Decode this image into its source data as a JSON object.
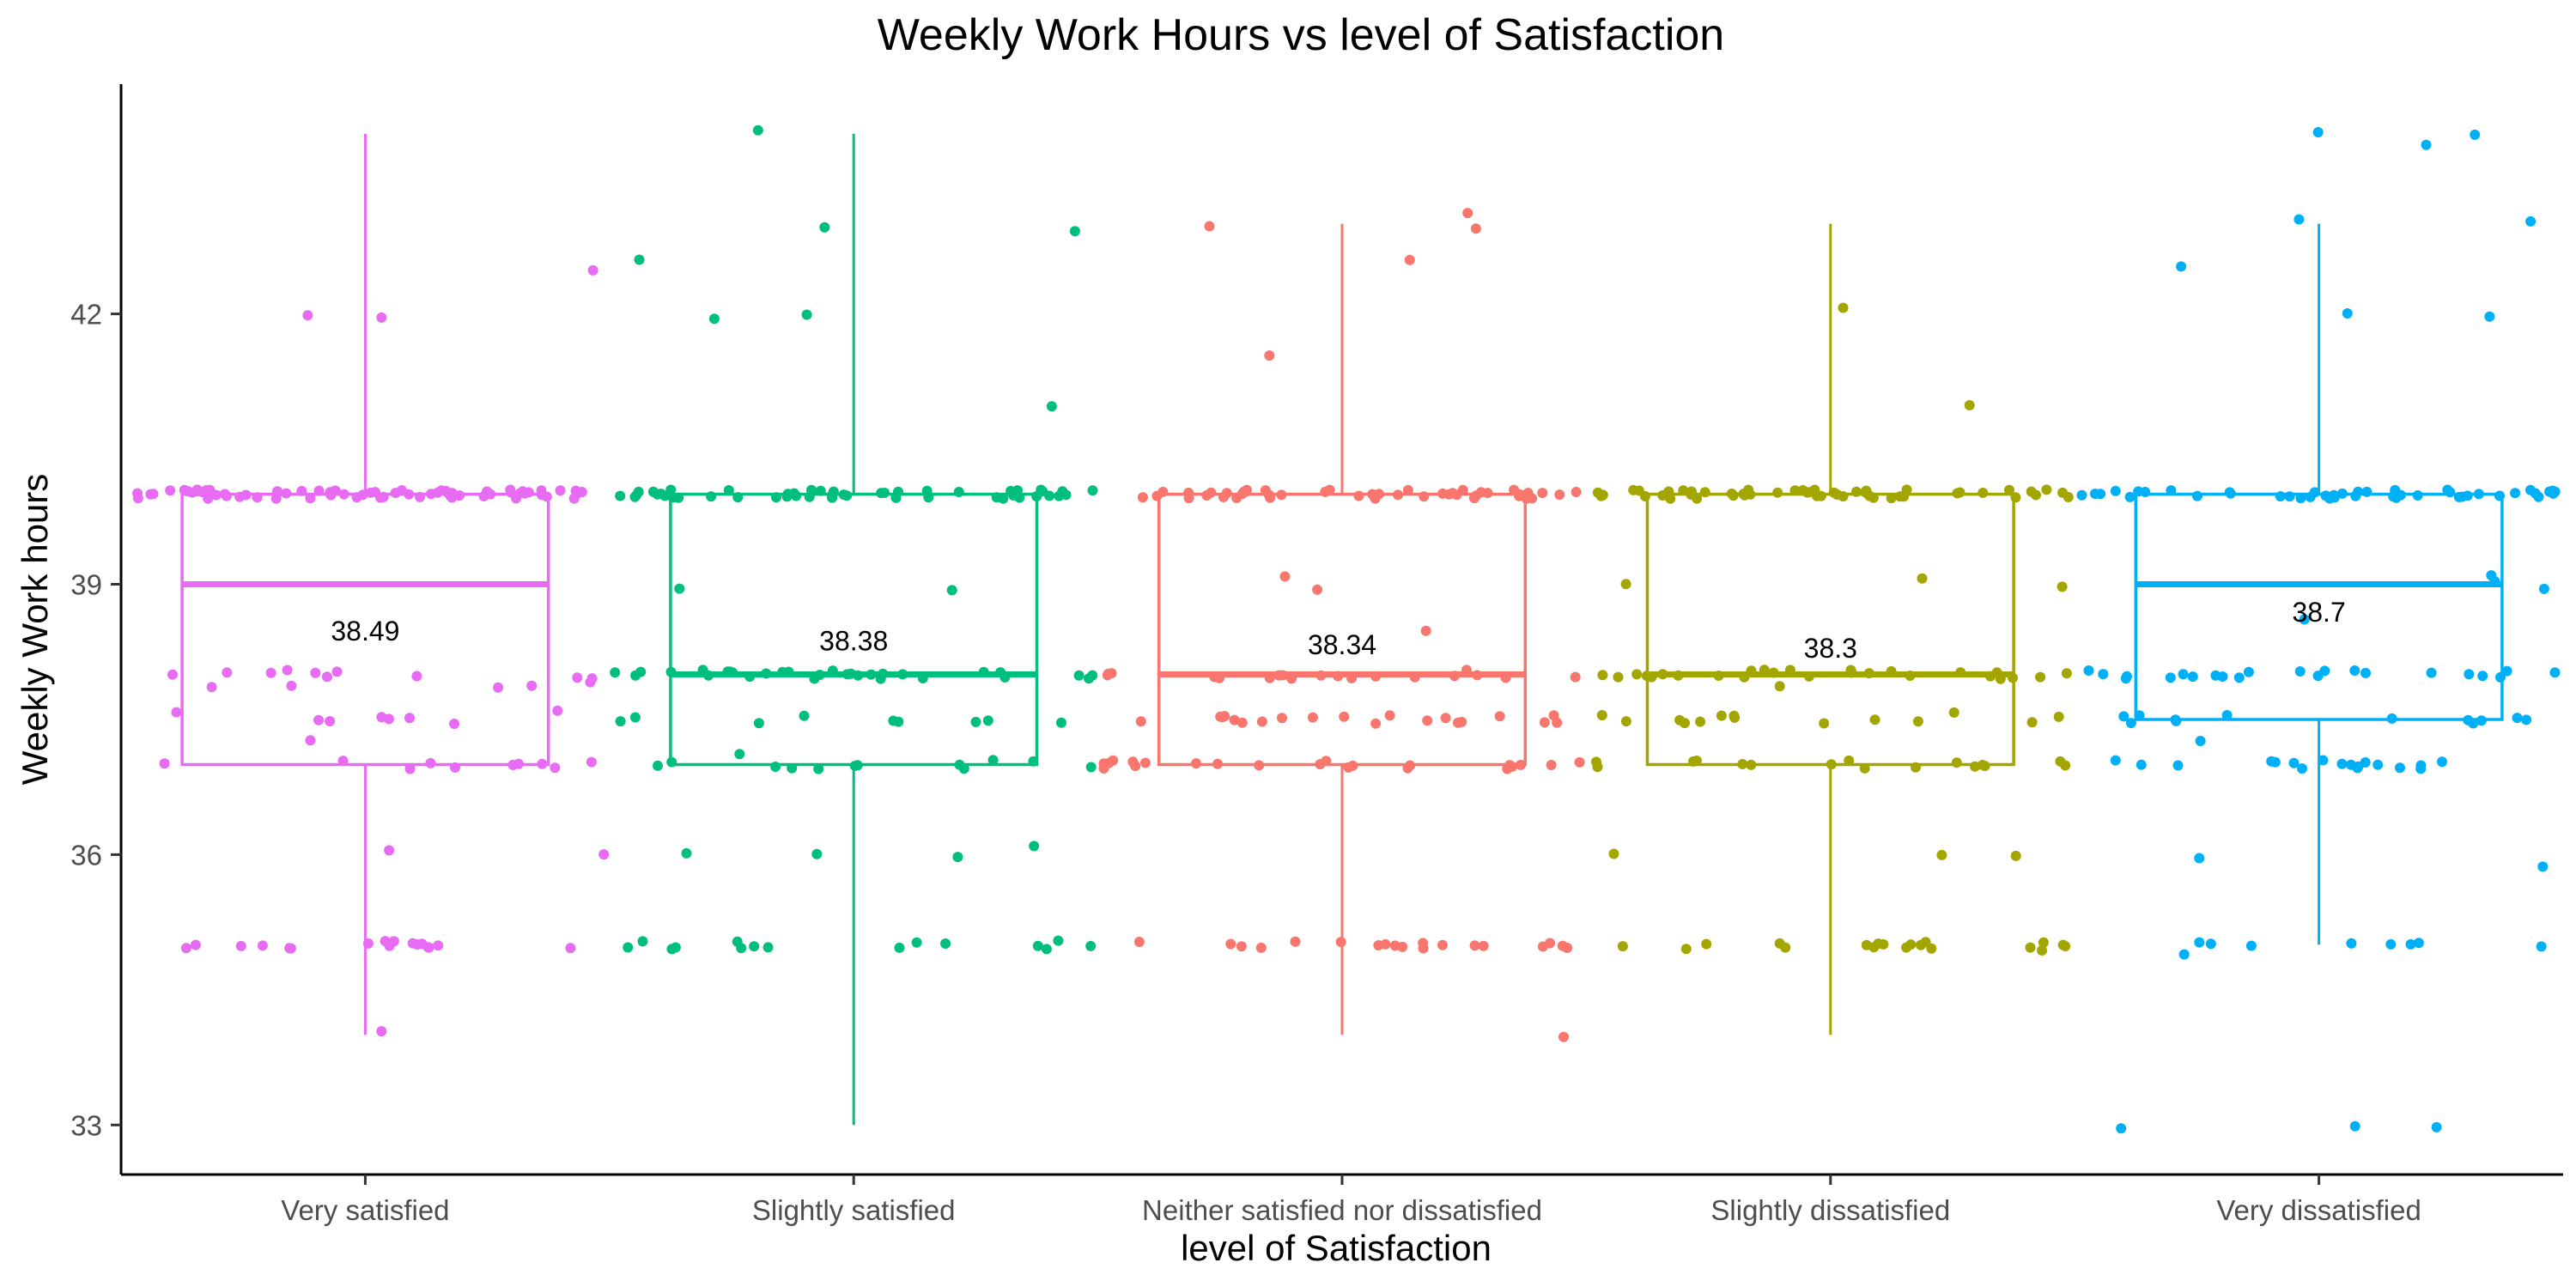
{
  "chart_data": {
    "type": "box",
    "title": "Weekly Work Hours vs level of Satisfaction",
    "xlabel": "level of Satisfaction",
    "ylabel": "Weekly Work hours",
    "ylim": [
      32.45,
      44.55
    ],
    "yticks": [
      33,
      36,
      39,
      42
    ],
    "grid": false,
    "legend": "none",
    "categories": [
      "Very satisfied",
      "Slightly satisfied",
      "Neither satisfied nor dissatisfied",
      "Slightly dissatisfied",
      "Very dissatisfied"
    ],
    "colors": [
      "#E76BF3",
      "#00BF7D",
      "#F8766D",
      "#A3A500",
      "#00B0F6"
    ],
    "boxes": [
      {
        "whisker_low": 34,
        "q1": 37,
        "median": 39,
        "q3": 40,
        "whisker_high": 44,
        "mean": 38.49,
        "mean_label": "38.49"
      },
      {
        "whisker_low": 33,
        "q1": 37,
        "median": 38,
        "q3": 40,
        "whisker_high": 44,
        "mean": 38.38,
        "mean_label": "38.38"
      },
      {
        "whisker_low": 34,
        "q1": 37,
        "median": 38,
        "q3": 40,
        "whisker_high": 43,
        "mean": 38.34,
        "mean_label": "38.34"
      },
      {
        "whisker_low": 34,
        "q1": 37,
        "median": 38,
        "q3": 40,
        "whisker_high": 43,
        "mean": 38.3,
        "mean_label": "38.3"
      },
      {
        "whisker_low": 35,
        "q1": 37.5,
        "median": 39,
        "q3": 40,
        "whisker_high": 43,
        "mean": 38.7,
        "mean_label": "38.7"
      }
    ],
    "points": [
      {
        "category": "Very satisfied",
        "y": [
          34,
          35,
          35,
          35,
          35,
          35,
          35,
          35,
          35,
          35,
          35,
          35,
          35,
          35,
          35,
          35,
          35,
          35,
          36,
          36,
          37,
          37,
          37,
          37,
          37,
          37,
          37,
          37,
          37,
          37,
          37.3,
          37.5,
          37.5,
          37.5,
          37.5,
          37.5,
          37.5,
          37.6,
          37.6,
          37.9,
          37.9,
          37.9,
          37.9,
          37.9,
          38,
          38,
          38,
          38,
          38,
          38,
          38,
          38,
          38,
          38,
          40,
          40,
          40,
          40,
          40,
          40,
          40,
          40,
          40,
          40,
          40,
          40,
          40,
          40,
          40,
          40,
          40,
          40,
          40,
          40,
          40,
          40,
          40,
          40,
          40,
          40,
          40,
          40,
          40,
          40,
          40,
          40,
          40,
          40,
          40,
          40,
          40,
          40,
          40,
          40,
          40,
          40,
          40,
          40,
          40,
          40,
          40,
          40,
          40,
          40,
          40,
          40,
          40,
          40,
          40,
          40,
          40,
          40,
          40,
          40,
          40,
          40,
          40,
          40,
          40,
          40,
          40,
          40,
          40,
          40,
          42,
          42,
          42.5
        ]
      },
      {
        "category": "Slightly satisfied",
        "y": [
          35,
          35,
          35,
          35,
          35,
          35,
          35,
          35,
          35,
          35,
          35,
          35,
          35,
          35,
          35,
          36,
          36,
          36,
          36.1,
          37,
          37,
          37,
          37,
          37,
          37,
          37,
          37,
          37,
          37,
          37,
          37,
          37.1,
          37.5,
          37.5,
          37.5,
          37.5,
          37.5,
          37.5,
          37.5,
          37.5,
          37.5,
          38,
          38,
          38,
          38,
          38,
          38,
          38,
          38,
          38,
          38,
          38,
          38,
          38,
          38,
          38,
          38,
          38,
          38,
          38,
          38,
          38,
          38,
          38,
          38,
          38,
          38,
          38,
          38,
          38,
          38,
          38.9,
          39,
          40,
          40,
          40,
          40,
          40,
          40,
          40,
          40,
          40,
          40,
          40,
          40,
          40,
          40,
          40,
          40,
          40,
          40,
          40,
          40,
          40,
          40,
          40,
          40,
          40,
          40,
          40,
          40,
          40,
          40,
          40,
          40,
          40,
          40,
          40,
          40,
          40,
          40,
          40,
          40,
          40,
          40,
          40,
          40,
          40,
          40,
          40,
          40,
          40,
          41,
          41.9,
          42,
          42.6,
          42.9,
          43,
          44
        ]
      },
      {
        "category": "Neither satisfied nor dissatisfied",
        "y": [
          34,
          35,
          35,
          35,
          35,
          35,
          35,
          35,
          35,
          35,
          35,
          35,
          35,
          35,
          35,
          35,
          35,
          35,
          35,
          35,
          37,
          37,
          37,
          37,
          37,
          37,
          37,
          37,
          37,
          37,
          37,
          37,
          37,
          37,
          37,
          37,
          37,
          37,
          37,
          37,
          37,
          37,
          37.5,
          37.5,
          37.5,
          37.5,
          37.5,
          37.5,
          37.5,
          37.5,
          37.5,
          37.5,
          37.5,
          37.5,
          37.5,
          37.5,
          37.5,
          37.5,
          37.5,
          37.5,
          37.5,
          37.5,
          38,
          38,
          38,
          38,
          38,
          38,
          38,
          38,
          38,
          38,
          38,
          38,
          38,
          38,
          38,
          38,
          38,
          38,
          38,
          38.5,
          38.9,
          39.1,
          40,
          40,
          40,
          40,
          40,
          40,
          40,
          40,
          40,
          40,
          40,
          40,
          40,
          40,
          40,
          40,
          40,
          40,
          40,
          40,
          40,
          40,
          40,
          40,
          40,
          40,
          40,
          40,
          40,
          40,
          40,
          40,
          40,
          40,
          40,
          40,
          40,
          40,
          40,
          40,
          40,
          40,
          40,
          40,
          40,
          40,
          41.5,
          42.6,
          42.9,
          43,
          43.1
        ]
      },
      {
        "category": "Slightly dissatisfied",
        "y": [
          34.9,
          35,
          35,
          35,
          35,
          35,
          35,
          35,
          35,
          35,
          35,
          35,
          35,
          35,
          35,
          35,
          35,
          35,
          35,
          36,
          36,
          36,
          37,
          37,
          37,
          37,
          37,
          37,
          37,
          37,
          37,
          37,
          37,
          37,
          37,
          37,
          37,
          37,
          37.5,
          37.5,
          37.5,
          37.5,
          37.5,
          37.5,
          37.5,
          37.5,
          37.5,
          37.5,
          37.5,
          37.5,
          37.5,
          37.6,
          37.9,
          38,
          38,
          38,
          38,
          38,
          38,
          38,
          38,
          38,
          38,
          38,
          38,
          38,
          38,
          38,
          38,
          38,
          38,
          38,
          38,
          38,
          38,
          38,
          38,
          38,
          38,
          39,
          39,
          39.1,
          40,
          40,
          40,
          40,
          40,
          40,
          40,
          40,
          40,
          40,
          40,
          40,
          40,
          40,
          40,
          40,
          40,
          40,
          40,
          40,
          40,
          40,
          40,
          40,
          40,
          40,
          40,
          40,
          40,
          40,
          40,
          40,
          40,
          40,
          40,
          40,
          40,
          40,
          40,
          40,
          40,
          40,
          40,
          40,
          40,
          40,
          40,
          40,
          40,
          40,
          40,
          41,
          42.1
        ]
      },
      {
        "category": "Very dissatisfied",
        "y": [
          33,
          33,
          33,
          34.9,
          35,
          35,
          35,
          35,
          35,
          35,
          35,
          35,
          35.9,
          36,
          37,
          37,
          37,
          37,
          37,
          37,
          37,
          37,
          37,
          37,
          37,
          37,
          37,
          37,
          37,
          37,
          37,
          37,
          37.3,
          37.5,
          37.5,
          37.5,
          37.5,
          37.5,
          37.5,
          37.5,
          37.5,
          37.5,
          37.5,
          37.5,
          37.5,
          38,
          38,
          38,
          38,
          38,
          38,
          38,
          38,
          38,
          38,
          38,
          38,
          38,
          38,
          38,
          38,
          38,
          38,
          38,
          38,
          38,
          38,
          38.6,
          38.9,
          39,
          39.1,
          40,
          40,
          40,
          40,
          40,
          40,
          40,
          40,
          40,
          40,
          40,
          40,
          40,
          40,
          40,
          40,
          40,
          40,
          40,
          40,
          40,
          40,
          40,
          40,
          40,
          40,
          40,
          40,
          40,
          40,
          40,
          40,
          40,
          40,
          40,
          40,
          40,
          40,
          40,
          40,
          40,
          40,
          40,
          40,
          40,
          42,
          42,
          42.5,
          43,
          43,
          43.9,
          44,
          44
        ]
      }
    ]
  }
}
